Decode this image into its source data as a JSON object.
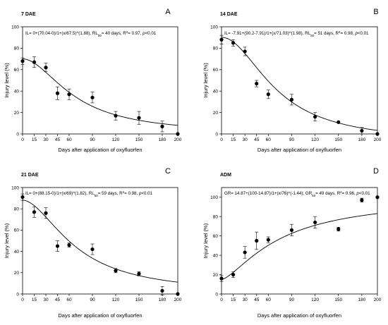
{
  "chart_data": [
    {
      "type": "scatter",
      "letter": "A",
      "title": "7 DAE",
      "equation_parts": [
        "IL= 0+(70.04-0)/1+(x/67.5)^(1.88), RL",
        "50",
        "= 40 days, R",
        "2",
        "= 0.97, ",
        "p",
        "<0.01"
      ],
      "xlabel": "Days after application of oxyfluorfen",
      "ylabel": "Injury level (%)",
      "xticks": [
        0,
        15,
        30,
        45,
        60,
        90,
        120,
        150,
        180,
        200
      ],
      "yticks": [
        0,
        20,
        40,
        60,
        80,
        100
      ],
      "xlim": [
        0,
        200
      ],
      "ylim": [
        0,
        100
      ],
      "fit": {
        "model": "logistic",
        "a": 0,
        "d": 70.04,
        "c": 67.5,
        "b": 1.88
      },
      "points": [
        {
          "x": 0,
          "y": 68,
          "err": 3
        },
        {
          "x": 15,
          "y": 67,
          "err": 5
        },
        {
          "x": 30,
          "y": 62,
          "err": 4
        },
        {
          "x": 45,
          "y": 38,
          "err": 6
        },
        {
          "x": 60,
          "y": 37,
          "err": 5
        },
        {
          "x": 90,
          "y": 34,
          "err": 5
        },
        {
          "x": 120,
          "y": 17,
          "err": 4
        },
        {
          "x": 150,
          "y": 15,
          "err": 6
        },
        {
          "x": 180,
          "y": 7,
          "err": 5
        },
        {
          "x": 200,
          "y": 0,
          "err": 0
        }
      ]
    },
    {
      "type": "scatter",
      "letter": "B",
      "title": "14 DAE",
      "equation_parts": [
        "IL= -7.91+(90.2-7.91)/1+(x/71.03)^(1.98), RL",
        "50",
        "= 51 days, R",
        "2",
        "= 0.98, ",
        "p",
        "<0.01"
      ],
      "xlabel": "Days after application of oxyfluorfen",
      "ylabel": "Injury level (%)",
      "xticks": [
        0,
        15,
        30,
        45,
        60,
        90,
        120,
        150,
        180,
        200
      ],
      "yticks": [
        0,
        20,
        40,
        60,
        80,
        100
      ],
      "xlim": [
        0,
        200
      ],
      "ylim": [
        0,
        100
      ],
      "fit": {
        "model": "logistic",
        "a": -7.91,
        "d": 90.2,
        "c": 71.03,
        "b": 1.98
      },
      "points": [
        {
          "x": 0,
          "y": 88,
          "err": 4
        },
        {
          "x": 15,
          "y": 85,
          "err": 3
        },
        {
          "x": 30,
          "y": 77,
          "err": 4
        },
        {
          "x": 45,
          "y": 47,
          "err": 3
        },
        {
          "x": 60,
          "y": 37,
          "err": 4
        },
        {
          "x": 90,
          "y": 32,
          "err": 5
        },
        {
          "x": 120,
          "y": 16,
          "err": 4
        },
        {
          "x": 150,
          "y": 11,
          "err": 0
        },
        {
          "x": 180,
          "y": 3,
          "err": 3
        },
        {
          "x": 200,
          "y": 0,
          "err": 0
        }
      ]
    },
    {
      "type": "scatter",
      "letter": "C",
      "title": "21 DAE",
      "equation_parts": [
        "IL= 0+(88.15-0)/1+(x/69)^(1.82), RL",
        "50",
        "= 59 days, R",
        "2",
        "= 0.98, ",
        "p",
        "<0.01"
      ],
      "xlabel": "Days after application of oxyfluorfen",
      "ylabel": "Injury level (%)",
      "xticks": [
        0,
        15,
        30,
        45,
        60,
        90,
        120,
        150,
        180,
        200
      ],
      "yticks": [
        0,
        20,
        40,
        60,
        80,
        100
      ],
      "xlim": [
        0,
        200
      ],
      "ylim": [
        0,
        100
      ],
      "fit": {
        "model": "logistic",
        "a": 0,
        "d": 88.15,
        "c": 69,
        "b": 1.82
      },
      "points": [
        {
          "x": 0,
          "y": 91,
          "err": 3
        },
        {
          "x": 15,
          "y": 77,
          "err": 5
        },
        {
          "x": 30,
          "y": 76,
          "err": 5
        },
        {
          "x": 45,
          "y": 45,
          "err": 5
        },
        {
          "x": 60,
          "y": 46,
          "err": 2
        },
        {
          "x": 90,
          "y": 42,
          "err": 5
        },
        {
          "x": 120,
          "y": 22,
          "err": 2
        },
        {
          "x": 150,
          "y": 19,
          "err": 2
        },
        {
          "x": 180,
          "y": 3,
          "err": 4
        },
        {
          "x": 200,
          "y": 0,
          "err": 0
        }
      ]
    },
    {
      "type": "scatter",
      "letter": "D",
      "title": "ADM",
      "equation_parts": [
        "GR= 14.87+(100-14.87)/1+(x/76)^(-1.44); GR",
        "50",
        "= 49 days, R",
        "2",
        "= 0.96, ",
        "p",
        "<0.01"
      ],
      "xlabel": "Days after application of oxyfluorfen",
      "ylabel": "Injury level (%)",
      "xticks": [
        0,
        15,
        30,
        45,
        60,
        90,
        120,
        150,
        180,
        200
      ],
      "yticks": [
        0,
        20,
        40,
        60,
        80,
        100
      ],
      "xlim": [
        0,
        200
      ],
      "ylim": [
        0,
        110
      ],
      "fit": {
        "model": "logistic",
        "a": 14.87,
        "d": 100,
        "c": 76,
        "b": -1.44
      },
      "points": [
        {
          "x": 0,
          "y": 16,
          "err": 3
        },
        {
          "x": 15,
          "y": 20,
          "err": 3
        },
        {
          "x": 30,
          "y": 43,
          "err": 6
        },
        {
          "x": 45,
          "y": 55,
          "err": 9
        },
        {
          "x": 60,
          "y": 56,
          "err": 3
        },
        {
          "x": 90,
          "y": 66,
          "err": 6
        },
        {
          "x": 120,
          "y": 74,
          "err": 6
        },
        {
          "x": 150,
          "y": 67,
          "err": 2
        },
        {
          "x": 180,
          "y": 97,
          "err": 2
        },
        {
          "x": 200,
          "y": 100,
          "err": 0
        }
      ]
    }
  ]
}
